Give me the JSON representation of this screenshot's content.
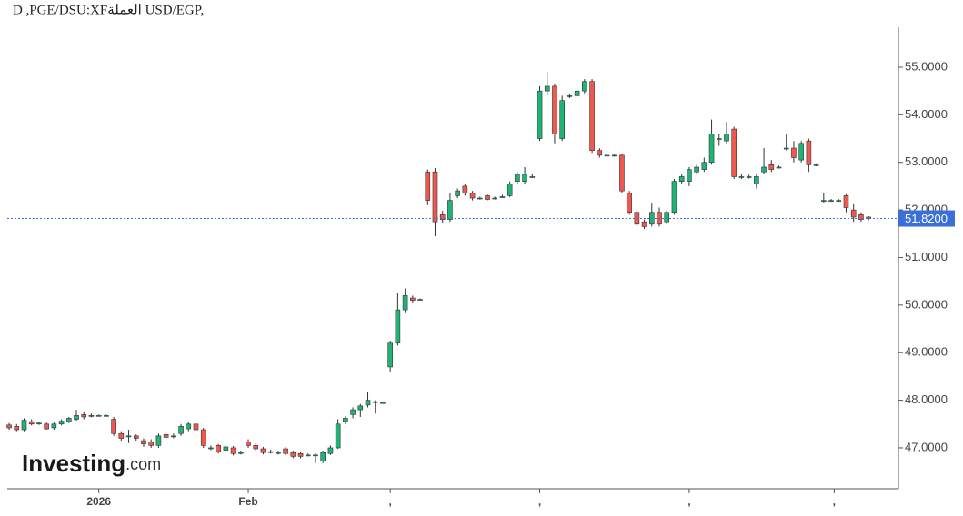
{
  "chart_data": {
    "type": "candlestick",
    "title": "D ,PGE/DSU:XFالعملة USD/EGP,",
    "watermark": {
      "name": "Investing",
      "suffix": ".com"
    },
    "up_color": "#1fb374",
    "down_color": "#f0584d",
    "current_price": {
      "value": 51.82,
      "label": "51.8200",
      "color": "#3a6fd8"
    },
    "xlim": [
      -0.25,
      119.0
    ],
    "xticks": [
      {
        "value": 12,
        "label": "2026"
      },
      {
        "value": 32,
        "label": "Feb"
      },
      {
        "value": 51,
        "label": ","
      },
      {
        "value": 71,
        "label": ","
      },
      {
        "value": 91,
        "label": ","
      },
      {
        "value": 110.4,
        "label": ","
      }
    ],
    "ylim": [
      46.14,
      55.84
    ],
    "yticks": [
      {
        "value": 47,
        "label": "47.0000"
      },
      {
        "value": 48,
        "label": "48.0000"
      },
      {
        "value": 49,
        "label": "49.0000"
      },
      {
        "value": 50,
        "label": "50.0000"
      },
      {
        "value": 51,
        "label": "51.0000"
      },
      {
        "value": 52,
        "label": "52.0000"
      },
      {
        "value": 53,
        "label": "53.0000"
      },
      {
        "value": 54,
        "label": "54.0000"
      },
      {
        "value": 55,
        "label": "55.0000"
      }
    ],
    "open": [
      47.48,
      47.45,
      47.38,
      47.55,
      47.52,
      47.5,
      47.42,
      47.5,
      47.55,
      47.6,
      47.7,
      47.68,
      47.68,
      47.68,
      47.6,
      47.3,
      47.25,
      47.25,
      47.15,
      47.12,
      47.05,
      47.28,
      47.25,
      47.3,
      47.4,
      47.5,
      47.38,
      47.0,
      47.05,
      46.95,
      47.0,
      46.9,
      47.12,
      47.05,
      46.98,
      46.92,
      46.9,
      46.98,
      46.9,
      46.88,
      46.85,
      46.85,
      46.72,
      46.88,
      47.0,
      47.55,
      47.7,
      47.8,
      47.9,
      47.97,
      47.95,
      48.7,
      49.2,
      49.9,
      50.15,
      50.12,
      52.8,
      52.8,
      51.9,
      51.8,
      52.3,
      52.5,
      52.35,
      52.25,
      52.3,
      52.25,
      52.28,
      52.3,
      52.6,
      52.6,
      52.7,
      53.5,
      54.5,
      54.6,
      53.5,
      54.4,
      54.4,
      54.5,
      54.7,
      53.25,
      53.15,
      53.15,
      53.15,
      52.35,
      51.95,
      51.75,
      51.7,
      51.95,
      51.75,
      51.95,
      52.6,
      52.6,
      52.8,
      52.85,
      53.0,
      53.5,
      53.45,
      53.7,
      52.7,
      52.7,
      52.55,
      52.8,
      52.95,
      52.9,
      53.3,
      53.3,
      53.05,
      53.45,
      52.95,
      52.2,
      52.2,
      52.2,
      52.3,
      52.0,
      51.9,
      51.85
    ],
    "high": [
      47.52,
      47.5,
      47.62,
      47.6,
      47.55,
      47.53,
      47.53,
      47.6,
      47.65,
      47.8,
      47.75,
      47.72,
      47.7,
      47.7,
      47.65,
      47.35,
      47.38,
      47.28,
      47.2,
      47.18,
      47.3,
      47.33,
      47.3,
      47.5,
      47.55,
      47.6,
      47.42,
      47.05,
      47.08,
      47.06,
      47.04,
      46.94,
      47.18,
      47.1,
      47.02,
      46.96,
      46.94,
      47.02,
      46.94,
      46.92,
      46.88,
      46.88,
      46.94,
      47.05,
      47.6,
      47.66,
      47.85,
      47.92,
      48.18,
      48.0,
      47.97,
      49.25,
      50.25,
      50.35,
      50.2,
      50.14,
      52.85,
      52.88,
      51.98,
      52.35,
      52.45,
      52.55,
      52.4,
      52.28,
      52.33,
      52.28,
      52.32,
      52.6,
      52.8,
      52.9,
      52.75,
      54.6,
      54.9,
      54.65,
      54.4,
      54.45,
      54.55,
      54.75,
      54.75,
      53.3,
      53.18,
      53.18,
      53.18,
      52.4,
      52.0,
      51.8,
      52.15,
      52.05,
      52.0,
      52.65,
      52.75,
      52.9,
      52.95,
      53.1,
      53.9,
      53.6,
      53.85,
      53.75,
      52.75,
      52.74,
      52.75,
      53.3,
      53.05,
      52.93,
      53.6,
      53.45,
      53.45,
      53.5,
      52.98,
      52.35,
      52.23,
      52.23,
      52.33,
      52.12,
      51.95,
      51.87
    ],
    "low": [
      47.38,
      47.35,
      47.35,
      47.47,
      47.48,
      47.38,
      47.38,
      47.47,
      47.52,
      47.57,
      47.6,
      47.64,
      47.66,
      47.66,
      47.25,
      47.15,
      47.1,
      47.15,
      47.02,
      47.0,
      47.0,
      47.18,
      47.2,
      47.25,
      47.35,
      47.33,
      47.0,
      46.95,
      46.88,
      46.9,
      46.84,
      46.86,
      47.0,
      46.94,
      46.86,
      46.88,
      46.86,
      46.84,
      46.78,
      46.78,
      46.82,
      46.68,
      46.68,
      46.85,
      46.98,
      47.5,
      47.62,
      47.65,
      47.85,
      47.72,
      47.93,
      48.6,
      49.15,
      49.85,
      50.05,
      50.1,
      52.1,
      51.45,
      51.72,
      51.75,
      52.25,
      52.3,
      52.2,
      52.22,
      52.2,
      52.22,
      52.25,
      52.27,
      52.55,
      52.55,
      52.67,
      53.45,
      54.4,
      53.4,
      53.45,
      54.35,
      54.35,
      54.45,
      53.2,
      53.1,
      53.12,
      53.12,
      52.35,
      51.9,
      51.65,
      51.6,
      51.65,
      51.65,
      51.7,
      51.9,
      52.55,
      52.5,
      52.75,
      52.8,
      52.95,
      53.35,
      53.4,
      52.65,
      52.65,
      52.66,
      52.45,
      52.75,
      52.8,
      52.87,
      53.25,
      53.0,
      53.0,
      52.8,
      52.92,
      52.15,
      52.17,
      52.17,
      51.95,
      51.75,
      51.75,
      51.78
    ],
    "close": [
      47.42,
      47.38,
      47.58,
      47.5,
      47.52,
      47.4,
      47.5,
      47.56,
      47.62,
      47.68,
      47.65,
      47.68,
      47.68,
      47.68,
      47.3,
      47.2,
      47.25,
      47.2,
      47.08,
      47.05,
      47.25,
      47.22,
      47.25,
      47.45,
      47.5,
      47.38,
      47.05,
      47.0,
      46.92,
      47.02,
      46.88,
      46.9,
      47.05,
      46.98,
      46.9,
      46.92,
      46.9,
      46.88,
      46.82,
      46.82,
      46.85,
      46.85,
      46.9,
      47.0,
      47.5,
      47.62,
      47.8,
      47.88,
      48.0,
      47.97,
      47.95,
      49.2,
      49.9,
      50.2,
      50.1,
      50.12,
      52.2,
      51.75,
      51.8,
      52.2,
      52.4,
      52.35,
      52.25,
      52.25,
      52.22,
      52.25,
      52.28,
      52.55,
      52.75,
      52.75,
      52.7,
      54.5,
      54.6,
      53.6,
      54.3,
      54.4,
      54.5,
      54.7,
      53.25,
      53.15,
      53.15,
      53.15,
      52.4,
      51.95,
      51.7,
      51.65,
      51.95,
      51.7,
      51.95,
      52.6,
      52.7,
      52.85,
      52.9,
      53.0,
      53.6,
      53.5,
      53.6,
      52.7,
      52.7,
      52.7,
      52.7,
      52.9,
      52.85,
      52.9,
      53.3,
      53.1,
      53.4,
      52.95,
      52.95,
      52.2,
      52.2,
      52.2,
      52.05,
      51.85,
      51.8,
      51.82
    ]
  }
}
